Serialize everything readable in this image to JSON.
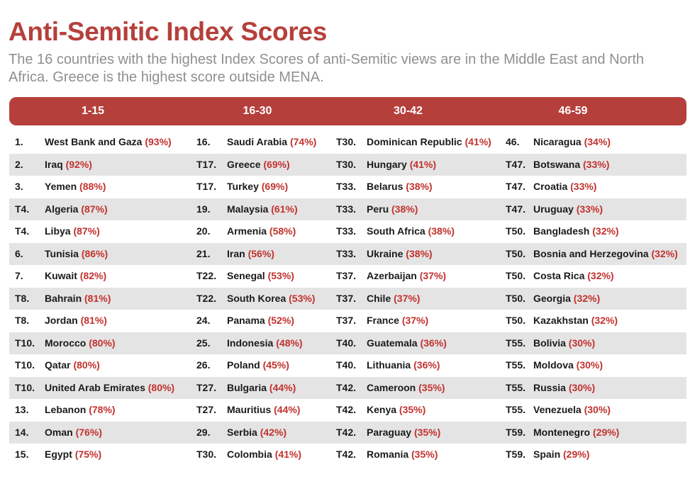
{
  "header": {
    "title": "Anti-Semitic Index Scores",
    "subtitle": "The 16 countries with the highest Index Scores of anti-Semitic views are in the Middle East and North Africa. Greece is the highest score outside MENA."
  },
  "colors": {
    "accent": "#b5403b",
    "percent": "#c2322e",
    "row_shade": "#e4e4e4",
    "subtitle": "#8f8f8f"
  },
  "columns": [
    {
      "label": "1-15",
      "rows": [
        {
          "rank": "1.",
          "name": "West Bank and Gaza",
          "pct": "(93%)"
        },
        {
          "rank": "2.",
          "name": "Iraq",
          "pct": "(92%)"
        },
        {
          "rank": "3.",
          "name": "Yemen",
          "pct": "(88%)"
        },
        {
          "rank": "T4.",
          "name": "Algeria",
          "pct": "(87%)"
        },
        {
          "rank": "T4.",
          "name": "Libya",
          "pct": "(87%)"
        },
        {
          "rank": "6.",
          "name": "Tunisia",
          "pct": "(86%)"
        },
        {
          "rank": "7.",
          "name": "Kuwait",
          "pct": "(82%)"
        },
        {
          "rank": "T8.",
          "name": "Bahrain",
          "pct": "(81%)"
        },
        {
          "rank": "T8.",
          "name": "Jordan",
          "pct": "(81%)"
        },
        {
          "rank": "T10.",
          "name": "Morocco",
          "pct": "(80%)"
        },
        {
          "rank": "T10.",
          "name": "Qatar",
          "pct": "(80%)"
        },
        {
          "rank": "T10.",
          "name": "United Arab Emirates",
          "pct": "(80%)"
        },
        {
          "rank": "13.",
          "name": "Lebanon",
          "pct": "(78%)"
        },
        {
          "rank": "14.",
          "name": "Oman",
          "pct": "(76%)"
        },
        {
          "rank": "15.",
          "name": "Egypt",
          "pct": "(75%)"
        }
      ]
    },
    {
      "label": "16-30",
      "rows": [
        {
          "rank": "16.",
          "name": "Saudi Arabia",
          "pct": "(74%)"
        },
        {
          "rank": "T17.",
          "name": "Greece",
          "pct": "(69%)"
        },
        {
          "rank": "T17.",
          "name": "Turkey",
          "pct": "(69%)"
        },
        {
          "rank": "19.",
          "name": "Malaysia",
          "pct": "(61%)"
        },
        {
          "rank": "20.",
          "name": "Armenia",
          "pct": "(58%)"
        },
        {
          "rank": "21.",
          "name": "Iran",
          "pct": "(56%)"
        },
        {
          "rank": "T22.",
          "name": "Senegal",
          "pct": "(53%)"
        },
        {
          "rank": "T22.",
          "name": "South Korea",
          "pct": "(53%)"
        },
        {
          "rank": "24.",
          "name": "Panama",
          "pct": "(52%)"
        },
        {
          "rank": "25.",
          "name": "Indonesia",
          "pct": "(48%)"
        },
        {
          "rank": "26.",
          "name": "Poland",
          "pct": "(45%)"
        },
        {
          "rank": "T27.",
          "name": "Bulgaria",
          "pct": "(44%)"
        },
        {
          "rank": "T27.",
          "name": "Mauritius",
          "pct": "(44%)"
        },
        {
          "rank": "29.",
          "name": "Serbia",
          "pct": "(42%)"
        },
        {
          "rank": "T30.",
          "name": "Colombia",
          "pct": "(41%)"
        }
      ]
    },
    {
      "label": "30-42",
      "rows": [
        {
          "rank": "T30.",
          "name": "Dominican Republic",
          "pct": "(41%)"
        },
        {
          "rank": "T30.",
          "name": "Hungary",
          "pct": "(41%)"
        },
        {
          "rank": "T33.",
          "name": "Belarus",
          "pct": "(38%)"
        },
        {
          "rank": "T33.",
          "name": "Peru",
          "pct": "(38%)"
        },
        {
          "rank": "T33.",
          "name": "South Africa",
          "pct": "(38%)"
        },
        {
          "rank": "T33.",
          "name": "Ukraine",
          "pct": "(38%)"
        },
        {
          "rank": "T37.",
          "name": "Azerbaijan",
          "pct": "(37%)"
        },
        {
          "rank": "T37.",
          "name": "Chile",
          "pct": "(37%)"
        },
        {
          "rank": "T37.",
          "name": "France",
          "pct": "(37%)"
        },
        {
          "rank": "T40.",
          "name": "Guatemala",
          "pct": "(36%)"
        },
        {
          "rank": "T40.",
          "name": "Lithuania",
          "pct": "(36%)"
        },
        {
          "rank": "T42.",
          "name": "Cameroon",
          "pct": "(35%)"
        },
        {
          "rank": "T42.",
          "name": "Kenya",
          "pct": "(35%)"
        },
        {
          "rank": "T42.",
          "name": "Paraguay",
          "pct": "(35%)"
        },
        {
          "rank": "T42.",
          "name": "Romania",
          "pct": "(35%)"
        }
      ]
    },
    {
      "label": "46-59",
      "rows": [
        {
          "rank": "46.",
          "name": "Nicaragua",
          "pct": "(34%)"
        },
        {
          "rank": "T47.",
          "name": "Botswana",
          "pct": "(33%)"
        },
        {
          "rank": "T47.",
          "name": "Croatia",
          "pct": "(33%)"
        },
        {
          "rank": "T47.",
          "name": "Uruguay",
          "pct": "(33%)"
        },
        {
          "rank": "T50.",
          "name": "Bangladesh",
          "pct": "(32%)"
        },
        {
          "rank": "T50.",
          "name": "Bosnia and Herzegovina",
          "pct": "(32%)"
        },
        {
          "rank": "T50.",
          "name": "Costa Rica",
          "pct": "(32%)"
        },
        {
          "rank": "T50.",
          "name": "Georgia",
          "pct": "(32%)"
        },
        {
          "rank": "T50.",
          "name": "Kazakhstan",
          "pct": "(32%)"
        },
        {
          "rank": "T55.",
          "name": "Bolivia",
          "pct": "(30%)"
        },
        {
          "rank": "T55.",
          "name": "Moldova",
          "pct": "(30%)"
        },
        {
          "rank": "T55.",
          "name": "Russia",
          "pct": "(30%)"
        },
        {
          "rank": "T55.",
          "name": "Venezuela",
          "pct": "(30%)"
        },
        {
          "rank": "T59.",
          "name": "Montenegro",
          "pct": "(29%)"
        },
        {
          "rank": "T59.",
          "name": "Spain",
          "pct": "(29%)"
        }
      ]
    }
  ]
}
